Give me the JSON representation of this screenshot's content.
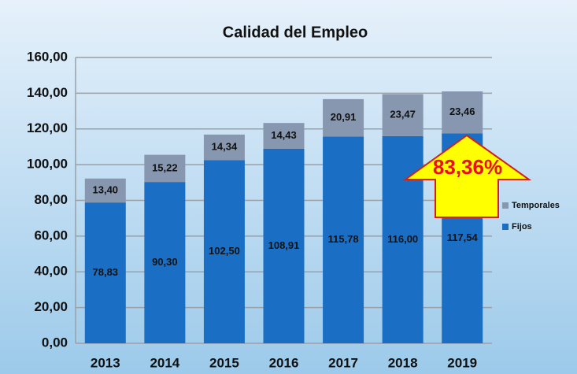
{
  "chart_data": {
    "type": "stacked_bar",
    "title": "Calidad del Empleo",
    "categories": [
      "2013",
      "2014",
      "2015",
      "2016",
      "2017",
      "2018",
      "2019"
    ],
    "series": [
      {
        "name": "Fijos",
        "color": "#1a6fc4",
        "values": [
          78.83,
          90.3,
          102.5,
          108.91,
          115.78,
          116.0,
          117.54
        ],
        "value_labels": [
          "78,83",
          "90,30",
          "102,50",
          "108,91",
          "115,78",
          "116,00",
          "117,54"
        ]
      },
      {
        "name": "Temporales",
        "color": "#8797b0",
        "values": [
          13.4,
          15.22,
          14.34,
          14.43,
          20.91,
          23.47,
          23.46
        ],
        "value_labels": [
          "13,40",
          "15,22",
          "14,34",
          "14,43",
          "20,91",
          "23,47",
          "23,46"
        ]
      }
    ],
    "ylim": [
      0,
      160
    ],
    "yticks": [
      {
        "value": 0,
        "label": "0,00"
      },
      {
        "value": 20,
        "label": "20,00"
      },
      {
        "value": 40,
        "label": "40,00"
      },
      {
        "value": 60,
        "label": "60,00"
      },
      {
        "value": 80,
        "label": "80,00"
      },
      {
        "value": 100,
        "label": "100,00"
      },
      {
        "value": 120,
        "label": "120,00"
      },
      {
        "value": 140,
        "label": "140,00"
      },
      {
        "value": 160,
        "label": "160,00"
      }
    ],
    "grid": true,
    "legend": "right",
    "annotations": [
      {
        "text": "83,36%"
      }
    ]
  }
}
